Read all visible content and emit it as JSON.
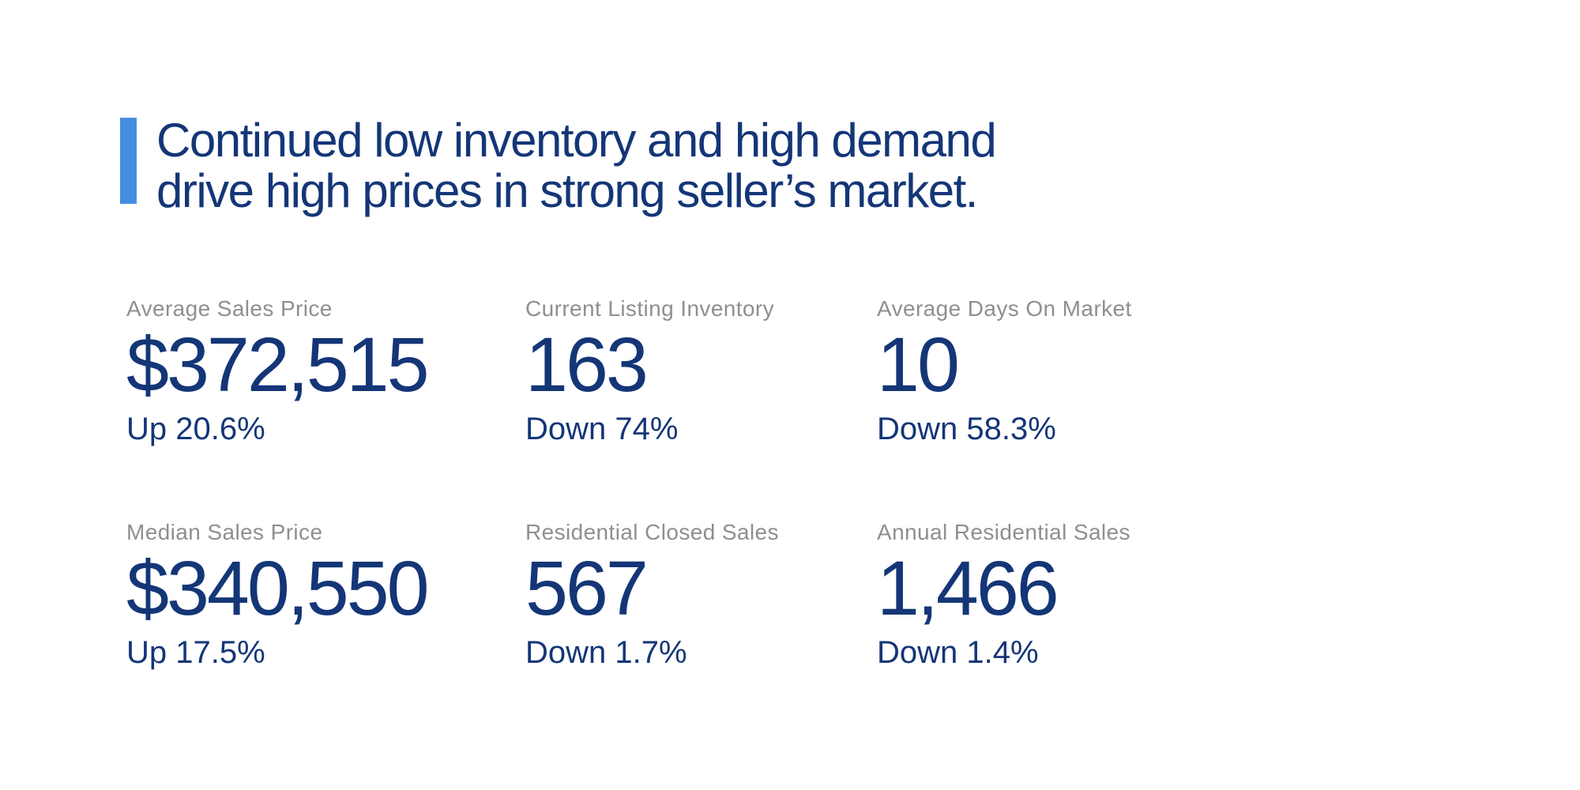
{
  "colors": {
    "navy": "#143677",
    "accent": "#448EE0",
    "gray": "#8F8F91",
    "background": "#FFFFFF"
  },
  "headline": {
    "line1": "Continued low inventory and high demand",
    "line2": "drive high prices in strong seller’s market."
  },
  "stats": [
    {
      "label": "Average Sales Price",
      "value": "$372,515",
      "change": "Up 20.6%"
    },
    {
      "label": "Current Listing Inventory",
      "value": "163",
      "change": "Down 74%"
    },
    {
      "label": "Average Days On Market",
      "value": "10",
      "change": "Down 58.3%"
    },
    {
      "label": "Median Sales Price",
      "value": "$340,550",
      "change": "Up 17.5%"
    },
    {
      "label": "Residential Closed Sales",
      "value": "567",
      "change": "Down 1.7%"
    },
    {
      "label": "Annual Residential Sales",
      "value": "1,466",
      "change": "Down 1.4%"
    }
  ]
}
